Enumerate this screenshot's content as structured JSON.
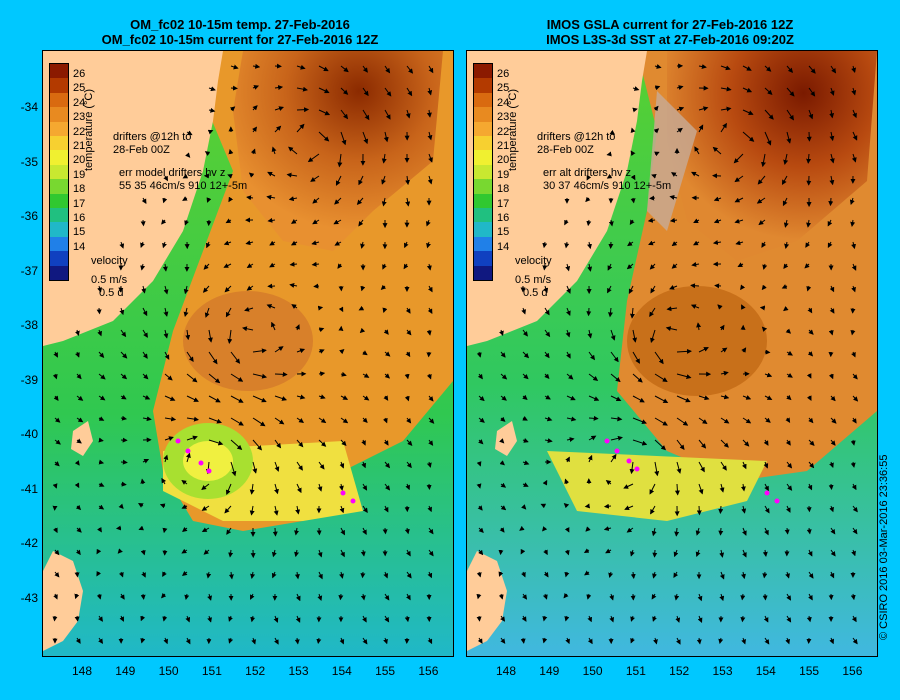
{
  "left_panel": {
    "title_line1": "OM_fc02 10-15m temp. 27-Feb-2016",
    "title_line2": "OM_fc02 10-15m current for 27-Feb-2016 12Z",
    "legend": {
      "drifters_line1": "drifters @12h to",
      "drifters_line2": "28-Feb 00Z",
      "err_line1": "err model drifters hv z",
      "err_line2": "55 35 46cm/s 910 12+-5m",
      "velocity": "velocity",
      "velocity_scale": "0.5 m/s",
      "velocity_time": "0.5 d"
    }
  },
  "right_panel": {
    "title_line1": "IMOS GSLA current for 27-Feb-2016 12Z",
    "title_line2": "IMOS L3S-3d SST at 27-Feb-2016 09:20Z",
    "legend": {
      "drifters_line1": "drifters @12h to",
      "drifters_line2": "28-Feb 00Z",
      "err_line1": "err alt drifters hv z",
      "err_line2": "30 37 46cm/s 910 12+-5m",
      "velocity": "velocity",
      "velocity_scale": "0.5 m/s",
      "velocity_time": "0.5 d"
    }
  },
  "colorbar": {
    "label": "temperature (°C)",
    "ticks": [
      "26",
      "25",
      "24",
      "23",
      "22",
      "21",
      "20",
      "19",
      "18",
      "17",
      "16",
      "15",
      "14"
    ],
    "colors": [
      "#8b1a00",
      "#b33a00",
      "#d96a10",
      "#e88a20",
      "#f5a830",
      "#f7d030",
      "#f0f030",
      "#c8e830",
      "#78d830",
      "#30c830",
      "#20c080",
      "#20b8c8",
      "#2080e8",
      "#1040c0",
      "#101880"
    ]
  },
  "axes": {
    "lat_ticks": [
      "-34",
      "-35",
      "-36",
      "-37",
      "-38",
      "-39",
      "-40",
      "-41",
      "-42",
      "-43"
    ],
    "lon_ticks": [
      "148",
      "149",
      "150",
      "151",
      "152",
      "153",
      "154",
      "155",
      "156"
    ]
  },
  "copyright": "© CSIRO 2016   03-Mar-2016 23:36:55",
  "colors": {
    "background": "#00c8ff",
    "land": "#ffcc99",
    "arrow": "#000000",
    "drifter": "#ff00ff",
    "missing": "#c8a890"
  }
}
